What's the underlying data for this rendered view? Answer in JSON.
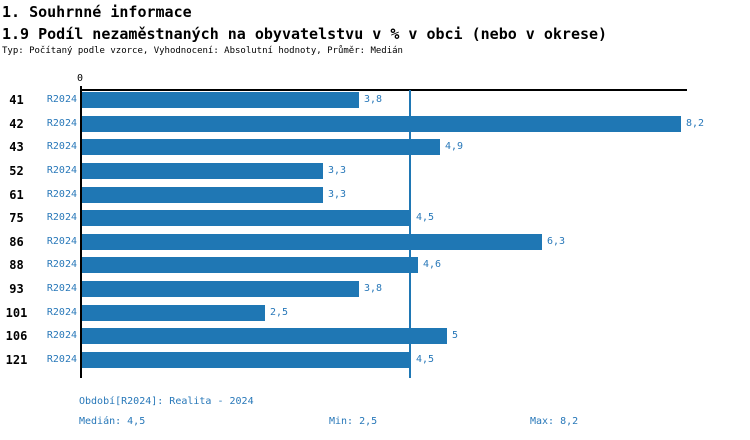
{
  "header": {
    "section_title": "1. Souhrnné informace",
    "chart_title": "1.9 Podíl nezaměstnaných na obyvatelstvu v % v obci (nebo v okrese)",
    "meta": "Typ: Počítaný podle vzorce, Vyhodnocení: Absolutní hodnoty, Průměr: Medián"
  },
  "chart_data": {
    "type": "bar",
    "orientation": "horizontal",
    "title": "1.9 Podíl nezaměstnaných na obyvatelstvu v % v obci (nebo v okrese)",
    "axis_zero_label": "0",
    "series_label": "R2024",
    "categories": [
      "41",
      "42",
      "43",
      "52",
      "61",
      "75",
      "86",
      "88",
      "93",
      "101",
      "106",
      "121"
    ],
    "values": [
      3.8,
      8.2,
      4.9,
      3.3,
      3.3,
      4.5,
      6.3,
      4.6,
      3.8,
      2.5,
      5,
      4.5
    ],
    "value_labels": [
      "3,8",
      "8,2",
      "4,9",
      "3,3",
      "3,3",
      "4,5",
      "6,3",
      "4,6",
      "3,8",
      "2,5",
      "5",
      "4,5"
    ],
    "xlim": [
      0,
      8.3
    ],
    "median_reference_line": 4.5,
    "grid": "off",
    "legend": "none",
    "bar_color": "#1f77b4",
    "text_color": "#2878b9"
  },
  "footer": {
    "period": "Období[R2024]: Realita - 2024",
    "median": "Medián: 4,5",
    "min": "Min: 2,5",
    "max": "Max: 8,2"
  }
}
